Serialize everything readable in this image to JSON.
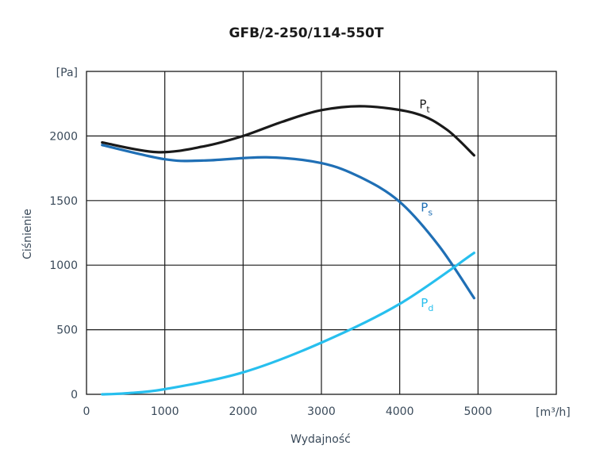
{
  "chart_data": {
    "type": "line",
    "title": "GFB/2-250/114-550T",
    "xlabel": "Wydajność",
    "ylabel": "Ciśnienie",
    "x_unit": "[m³/h]",
    "y_unit": "[Pa]",
    "xlim": [
      0,
      6000
    ],
    "ylim": [
      0,
      2500
    ],
    "grid": true,
    "x_ticks": [
      "0",
      "1000",
      "2000",
      "3000",
      "4000",
      "5000"
    ],
    "y_ticks": [
      "0",
      "500",
      "1000",
      "1500",
      "2000"
    ],
    "series": [
      {
        "name": "Pt",
        "label_main": "P",
        "label_sub": "t",
        "color": "#1a1a1a",
        "x": [
          200,
          900,
          1500,
          2000,
          2500,
          3000,
          3550,
          4200,
          4600,
          4950
        ],
        "y": [
          1950,
          1875,
          1920,
          2000,
          2110,
          2200,
          2230,
          2175,
          2050,
          1850
        ],
        "label_at": [
          4250,
          2240
        ]
      },
      {
        "name": "Ps",
        "label_main": "P",
        "label_sub": "s",
        "color": "#1f6fb5",
        "x": [
          200,
          1000,
          1500,
          2300,
          3000,
          3500,
          4000,
          4500,
          4950
        ],
        "y": [
          1930,
          1820,
          1810,
          1835,
          1790,
          1680,
          1490,
          1150,
          745
        ],
        "label_at": [
          4270,
          1440
        ]
      },
      {
        "name": "Pd",
        "label_main": "P",
        "label_sub": "d",
        "color": "#27bfee",
        "x": [
          200,
          500,
          1000,
          2000,
          3000,
          4000,
          4950
        ],
        "y": [
          0,
          8,
          40,
          170,
          400,
          700,
          1095
        ],
        "label_at": [
          4270,
          700
        ]
      }
    ]
  }
}
